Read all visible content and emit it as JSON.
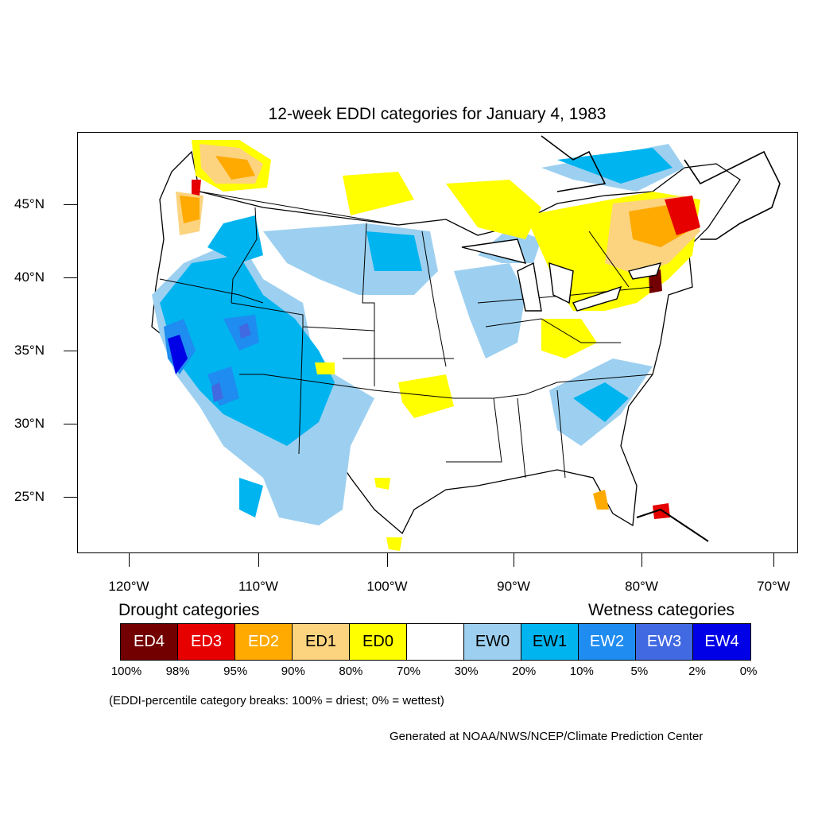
{
  "title": "12-week EDDI categories for January 4, 1983",
  "lat_labels": [
    "45°N",
    "40°N",
    "35°N",
    "30°N",
    "25°N"
  ],
  "lon_labels": [
    "120°W",
    "110°W",
    "100°W",
    "90°W",
    "80°W",
    "70°W"
  ],
  "legend": {
    "drought_heading": "Drought categories",
    "wetness_heading": "Wetness categories",
    "categories": [
      {
        "label": "ED4",
        "color": "#730000",
        "text_color": "#ffffff"
      },
      {
        "label": "ED3",
        "color": "#e60000",
        "text_color": "#ffffff"
      },
      {
        "label": "ED2",
        "color": "#ffaa00",
        "text_color": "#ffffff"
      },
      {
        "label": "ED1",
        "color": "#fcd37f",
        "text_color": "#000000"
      },
      {
        "label": "ED0",
        "color": "#ffff00",
        "text_color": "#000000"
      },
      {
        "label": "",
        "color": "#ffffff",
        "text_color": "#000000"
      },
      {
        "label": "EW0",
        "color": "#9dd0f0",
        "text_color": "#000000"
      },
      {
        "label": "EW1",
        "color": "#00b4f0",
        "text_color": "#000000"
      },
      {
        "label": "EW2",
        "color": "#1e8cf0",
        "text_color": "#ffffff"
      },
      {
        "label": "EW3",
        "color": "#4169e1",
        "text_color": "#ffffff"
      },
      {
        "label": "EW4",
        "color": "#0000e6",
        "text_color": "#ffffff"
      }
    ],
    "percentiles": [
      "100%",
      "98%",
      "95%",
      "90%",
      "80%",
      "70%",
      "30%",
      "20%",
      "10%",
      "5%",
      "2%",
      "0%"
    ]
  },
  "note": "(EDDI-percentile category breaks: 100% = driest; 0% = wettest)",
  "credit": "Generated at NOAA/NWS/NCEP/Climate Prediction Center"
}
